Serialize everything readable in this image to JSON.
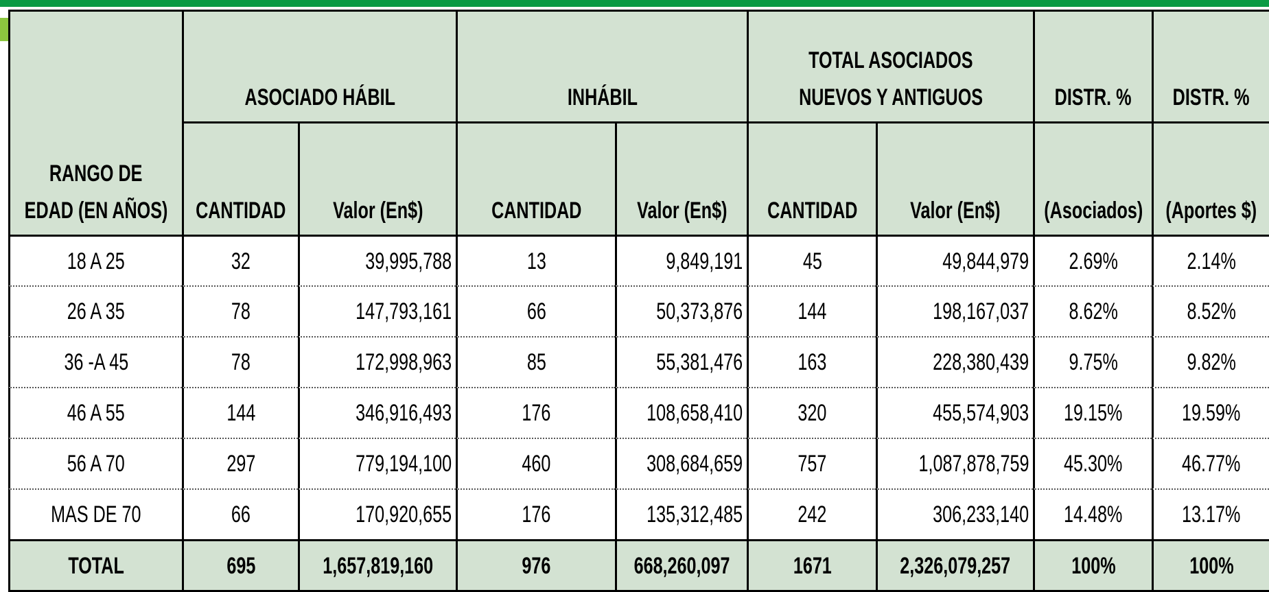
{
  "header": {
    "row_label": [
      "RANGO DE",
      "EDAD (EN AÑOS)"
    ],
    "groups": [
      [
        "ASOCIADO HÁBIL"
      ],
      [
        "INHÁBIL"
      ],
      [
        "TOTAL ASOCIADOS",
        "NUEVOS Y ANTIGUOS"
      ],
      [
        "DISTR. %"
      ],
      [
        "DISTR. %"
      ]
    ],
    "subheaders": [
      "CANTIDAD",
      "Valor  (En$)",
      "CANTIDAD",
      "Valor  (En$)",
      "CANTIDAD",
      "Valor  (En$)",
      "(Asociados)",
      "(Aportes $)"
    ]
  },
  "rows": [
    [
      "18 A 25",
      "32",
      "39,995,788",
      "13",
      "9,849,191",
      "45",
      "49,844,979",
      "2.69%",
      "2.14%"
    ],
    [
      "26 A 35",
      "78",
      "147,793,161",
      "66",
      "50,373,876",
      "144",
      "198,167,037",
      "8.62%",
      "8.52%"
    ],
    [
      "36 -A 45",
      "78",
      "172,998,963",
      "85",
      "55,381,476",
      "163",
      "228,380,439",
      "9.75%",
      "9.82%"
    ],
    [
      "46 A 55",
      "144",
      "346,916,493",
      "176",
      "108,658,410",
      "320",
      "455,574,903",
      "19.15%",
      "19.59%"
    ],
    [
      "56 A 70",
      "297",
      "779,194,100",
      "460",
      "308,684,659",
      "757",
      "1,087,878,759",
      "45.30%",
      "46.77%"
    ],
    [
      "MAS DE 70",
      "66",
      "170,920,655",
      "176",
      "135,312,485",
      "242",
      "306,233,140",
      "14.48%",
      "13.17%"
    ]
  ],
  "total": [
    "TOTAL",
    "695",
    "1,657,819,160",
    "976",
    "668,260,097",
    "1671",
    "2,326,079,257",
    "100%",
    "100%"
  ]
}
